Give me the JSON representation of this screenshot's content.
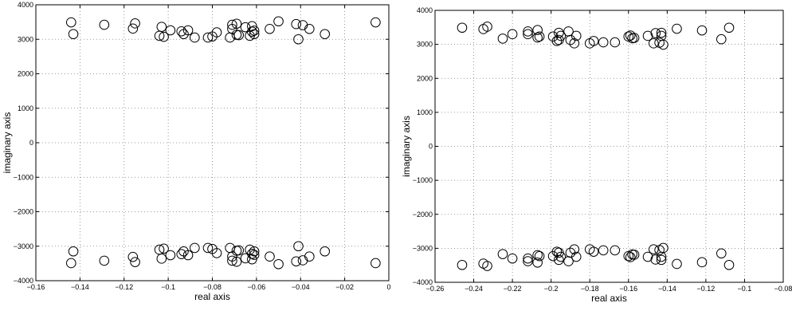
{
  "chart_data": [
    {
      "type": "scatter",
      "xlabel": "real axis",
      "ylabel": "imaginary axis",
      "xlim": [
        -0.16,
        0
      ],
      "ylim": [
        -4000,
        4000
      ],
      "xticks": [
        -0.16,
        -0.14,
        -0.12,
        -0.1,
        -0.08,
        -0.06,
        -0.04,
        -0.02,
        0
      ],
      "xtick_labels": [
        "−0.16",
        "−0.14",
        "−0.12",
        "−0.1",
        "−0.08",
        "−0.06",
        "−0.04",
        "−0.02",
        "0"
      ],
      "yticks": [
        -4000,
        -3000,
        -2000,
        -1000,
        0,
        1000,
        2000,
        3000,
        4000
      ],
      "ytick_labels": [
        "−4000",
        "−3000",
        "−2000",
        "−1000",
        "0",
        "1000",
        "2000",
        "3000",
        "4000"
      ],
      "grid": true,
      "marker": "circle",
      "mirror_conjugate": true,
      "points_upper": [
        {
          "x": -0.144,
          "y": 3490
        },
        {
          "x": -0.143,
          "y": 3150
        },
        {
          "x": -0.129,
          "y": 3420
        },
        {
          "x": -0.115,
          "y": 3460
        },
        {
          "x": -0.116,
          "y": 3310
        },
        {
          "x": -0.103,
          "y": 3360
        },
        {
          "x": -0.102,
          "y": 3070
        },
        {
          "x": -0.104,
          "y": 3100
        },
        {
          "x": -0.099,
          "y": 3260
        },
        {
          "x": -0.094,
          "y": 3230
        },
        {
          "x": -0.093,
          "y": 3150
        },
        {
          "x": -0.091,
          "y": 3260
        },
        {
          "x": -0.088,
          "y": 3050
        },
        {
          "x": -0.082,
          "y": 3050
        },
        {
          "x": -0.08,
          "y": 3080
        },
        {
          "x": -0.078,
          "y": 3200
        },
        {
          "x": -0.071,
          "y": 3300
        },
        {
          "x": -0.071,
          "y": 3420
        },
        {
          "x": -0.072,
          "y": 3050
        },
        {
          "x": -0.069,
          "y": 3450
        },
        {
          "x": -0.069,
          "y": 3130
        },
        {
          "x": -0.068,
          "y": 3120
        },
        {
          "x": -0.065,
          "y": 3350
        },
        {
          "x": -0.063,
          "y": 3100
        },
        {
          "x": -0.062,
          "y": 3380
        },
        {
          "x": -0.062,
          "y": 3220
        },
        {
          "x": -0.061,
          "y": 3150
        },
        {
          "x": -0.061,
          "y": 3250
        },
        {
          "x": -0.054,
          "y": 3300
        },
        {
          "x": -0.05,
          "y": 3520
        },
        {
          "x": -0.042,
          "y": 3440
        },
        {
          "x": -0.041,
          "y": 3000
        },
        {
          "x": -0.039,
          "y": 3410
        },
        {
          "x": -0.036,
          "y": 3300
        },
        {
          "x": -0.029,
          "y": 3150
        },
        {
          "x": -0.006,
          "y": 3490
        }
      ]
    },
    {
      "type": "scatter",
      "xlabel": "real axis",
      "ylabel": "imaginary axis",
      "xlim": [
        -0.26,
        -0.08
      ],
      "ylim": [
        -4000,
        4000
      ],
      "xticks": [
        -0.26,
        -0.24,
        -0.22,
        -0.2,
        -0.18,
        -0.16,
        -0.14,
        -0.12,
        -0.1,
        -0.08
      ],
      "xtick_labels": [
        "−0.26",
        "−0.24",
        "−0.22",
        "−0.2",
        "−0.18",
        "−0.16",
        "−0.14",
        "−0.12",
        "−0.1",
        "−0.08"
      ],
      "yticks": [
        -4000,
        -3000,
        -2000,
        -1000,
        0,
        1000,
        2000,
        3000,
        4000
      ],
      "ytick_labels": [
        "−4000",
        "−3000",
        "−2000",
        "−1000",
        "0",
        "1000",
        "2000",
        "3000",
        "4000"
      ],
      "grid": true,
      "marker": "circle",
      "mirror_conjugate": true,
      "points_upper": [
        {
          "x": -0.246,
          "y": 3490
        },
        {
          "x": -0.235,
          "y": 3450
        },
        {
          "x": -0.233,
          "y": 3520
        },
        {
          "x": -0.225,
          "y": 3170
        },
        {
          "x": -0.22,
          "y": 3300
        },
        {
          "x": -0.212,
          "y": 3380
        },
        {
          "x": -0.212,
          "y": 3300
        },
        {
          "x": -0.207,
          "y": 3420
        },
        {
          "x": -0.206,
          "y": 3230
        },
        {
          "x": -0.207,
          "y": 3200
        },
        {
          "x": -0.199,
          "y": 3230
        },
        {
          "x": -0.197,
          "y": 3100
        },
        {
          "x": -0.196,
          "y": 3340
        },
        {
          "x": -0.196,
          "y": 3130
        },
        {
          "x": -0.195,
          "y": 3250
        },
        {
          "x": -0.191,
          "y": 3380
        },
        {
          "x": -0.19,
          "y": 3130
        },
        {
          "x": -0.188,
          "y": 3030
        },
        {
          "x": -0.187,
          "y": 3250
        },
        {
          "x": -0.18,
          "y": 3030
        },
        {
          "x": -0.178,
          "y": 3100
        },
        {
          "x": -0.173,
          "y": 3060
        },
        {
          "x": -0.167,
          "y": 3060
        },
        {
          "x": -0.16,
          "y": 3230
        },
        {
          "x": -0.159,
          "y": 3260
        },
        {
          "x": -0.158,
          "y": 3180
        },
        {
          "x": -0.157,
          "y": 3190
        },
        {
          "x": -0.15,
          "y": 3250
        },
        {
          "x": -0.147,
          "y": 3030
        },
        {
          "x": -0.146,
          "y": 3330
        },
        {
          "x": -0.144,
          "y": 3050
        },
        {
          "x": -0.143,
          "y": 3340
        },
        {
          "x": -0.142,
          "y": 2990
        },
        {
          "x": -0.143,
          "y": 3250
        },
        {
          "x": -0.135,
          "y": 3460
        },
        {
          "x": -0.122,
          "y": 3410
        },
        {
          "x": -0.112,
          "y": 3150
        },
        {
          "x": -0.108,
          "y": 3490
        }
      ]
    }
  ]
}
